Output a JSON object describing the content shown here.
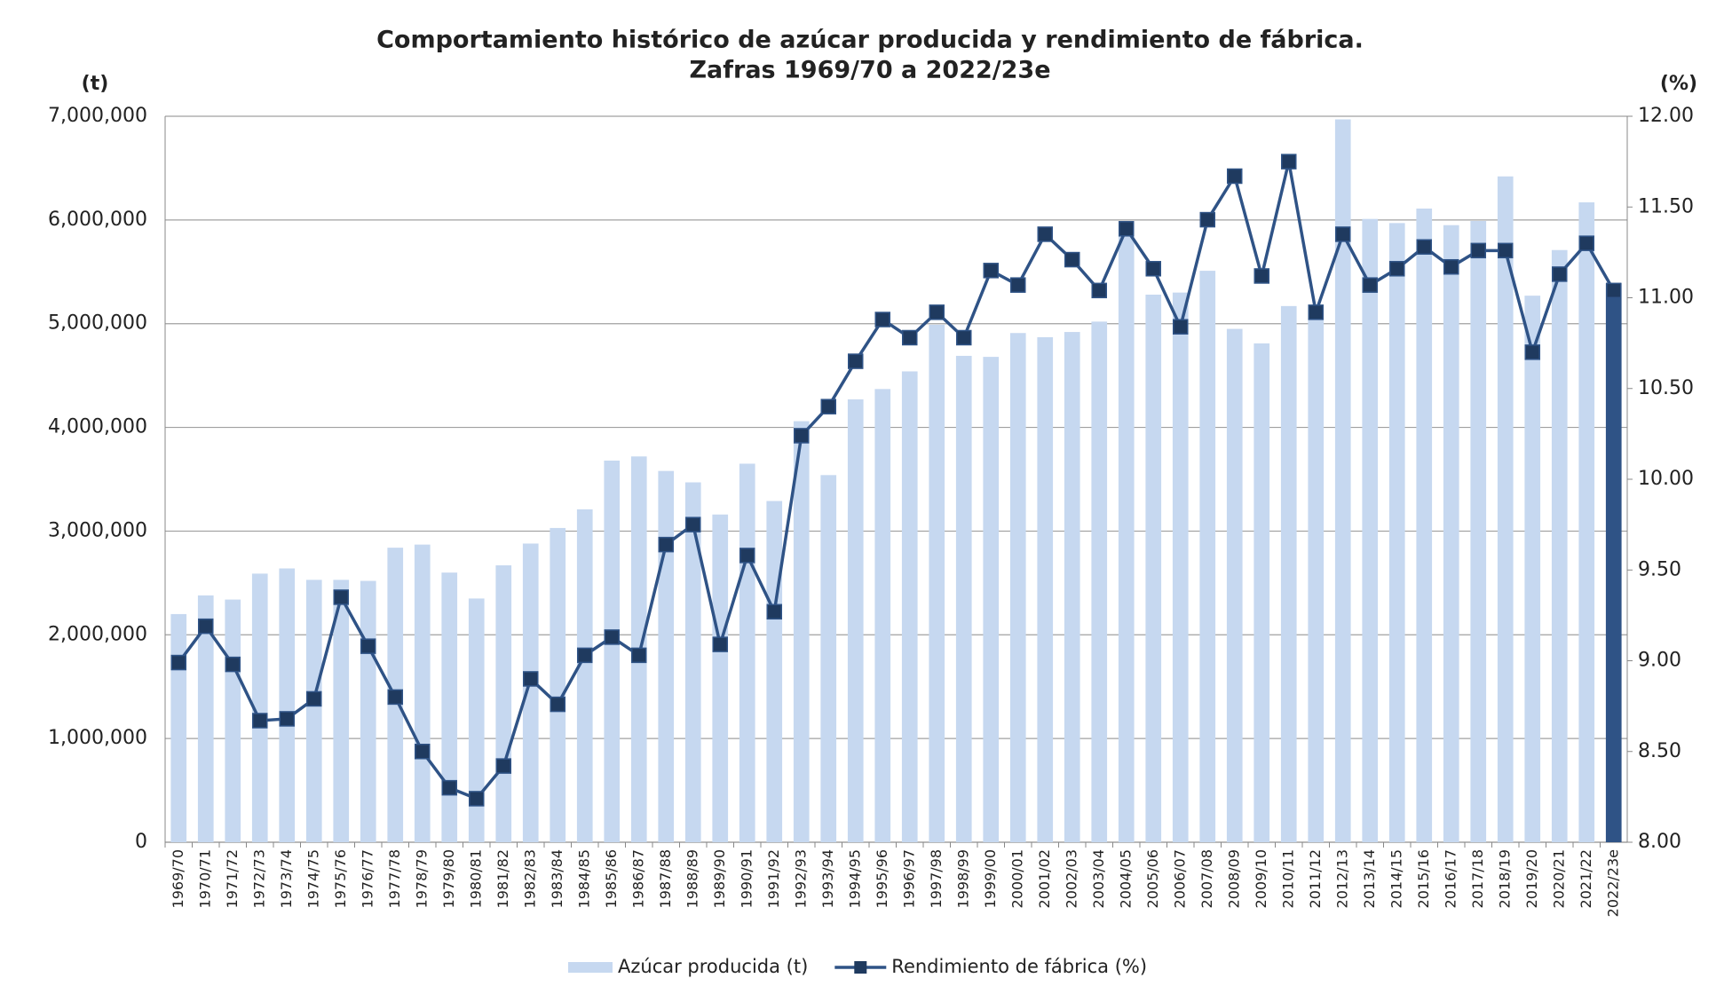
{
  "chart_data": {
    "type": "bar-line",
    "title": "Comportamiento histórico de azúcar producida y rendimiento de fábrica.",
    "subtitle": "Zafras 1969/70 a 2022/23e",
    "y_label": "(t)",
    "y2_label": "(%)",
    "categories": [
      "1969/70",
      "1970/71",
      "1971/72",
      "1972/73",
      "1973/74",
      "1974/75",
      "1975/76",
      "1976/77",
      "1977/78",
      "1978/79",
      "1979/80",
      "1980/81",
      "1981/82",
      "1982/83",
      "1983/84",
      "1984/85",
      "1985/86",
      "1986/87",
      "1987/88",
      "1988/89",
      "1989/90",
      "1990/91",
      "1991/92",
      "1992/93",
      "1993/94",
      "1994/95",
      "1995/96",
      "1996/97",
      "1997/98",
      "1998/99",
      "1999/00",
      "2000/01",
      "2001/02",
      "2002/03",
      "2003/04",
      "2004/05",
      "2005/06",
      "2006/07",
      "2007/08",
      "2008/09",
      "2009/10",
      "2010/11",
      "2011/12",
      "2012/13",
      "2013/14",
      "2014/15",
      "2015/16",
      "2016/17",
      "2017/18",
      "2018/19",
      "2019/20",
      "2020/21",
      "2021/22",
      "2022/23e"
    ],
    "series": [
      {
        "name": "Azúcar producida (t)",
        "type": "bar",
        "color": "#c6d8f0",
        "colors": [
          "#c6d8f0",
          "#c6d8f0",
          "#c6d8f0",
          "#c6d8f0",
          "#c6d8f0",
          "#c6d8f0",
          "#c6d8f0",
          "#c6d8f0",
          "#c6d8f0",
          "#c6d8f0",
          "#c6d8f0",
          "#c6d8f0",
          "#c6d8f0",
          "#c6d8f0",
          "#c6d8f0",
          "#c6d8f0",
          "#c6d8f0",
          "#c6d8f0",
          "#c6d8f0",
          "#c6d8f0",
          "#c6d8f0",
          "#c6d8f0",
          "#c6d8f0",
          "#c6d8f0",
          "#c6d8f0",
          "#c6d8f0",
          "#c6d8f0",
          "#c6d8f0",
          "#c6d8f0",
          "#c6d8f0",
          "#c6d8f0",
          "#c6d8f0",
          "#c6d8f0",
          "#c6d8f0",
          "#c6d8f0",
          "#c6d8f0",
          "#c6d8f0",
          "#c6d8f0",
          "#c6d8f0",
          "#c6d8f0",
          "#c6d8f0",
          "#c6d8f0",
          "#c6d8f0",
          "#c6d8f0",
          "#c6d8f0",
          "#c6d8f0",
          "#c6d8f0",
          "#c6d8f0",
          "#c6d8f0",
          "#c6d8f0",
          "#c6d8f0",
          "#c6d8f0",
          "#c6d8f0",
          "#2f5386"
        ],
        "values": [
          2200000,
          2380000,
          2340000,
          2590000,
          2640000,
          2530000,
          2530000,
          2520000,
          2840000,
          2870000,
          2600000,
          2350000,
          2670000,
          2880000,
          3030000,
          3210000,
          3680000,
          3720000,
          3580000,
          3470000,
          3160000,
          3650000,
          3290000,
          4060000,
          3540000,
          4270000,
          4370000,
          4540000,
          4990000,
          4690000,
          4680000,
          4910000,
          4870000,
          4920000,
          5020000,
          5850000,
          5280000,
          5300000,
          5510000,
          4950000,
          4810000,
          5170000,
          5050000,
          6970000,
          6010000,
          5970000,
          6110000,
          5950000,
          5990000,
          6420000,
          5270000,
          5710000,
          6170000,
          5390000
        ]
      },
      {
        "name": "Rendimiento de fábrica (%)",
        "type": "line",
        "axis": "y2",
        "color": "#2f5386",
        "values": [
          8.99,
          9.19,
          8.98,
          8.67,
          8.68,
          8.79,
          9.35,
          9.08,
          8.8,
          8.5,
          8.3,
          8.24,
          8.42,
          8.9,
          8.76,
          9.03,
          9.13,
          9.03,
          9.64,
          9.75,
          9.09,
          9.58,
          9.27,
          10.24,
          10.4,
          10.65,
          10.88,
          10.78,
          10.92,
          10.78,
          11.15,
          11.07,
          11.35,
          11.21,
          11.04,
          11.38,
          11.16,
          10.84,
          11.43,
          11.67,
          11.12,
          11.75,
          10.92,
          11.35,
          11.07,
          11.16,
          11.28,
          11.17,
          11.26,
          11.26,
          10.7,
          11.13,
          11.3,
          11.04
        ]
      }
    ],
    "ylim": [
      0,
      7000000
    ],
    "yticks": [
      0,
      {
        "value": 1000000,
        "label": "1,000,000"
      },
      {
        "value": 2000000,
        "label": "2,000,000"
      },
      {
        "value": 3000000,
        "label": "3,000,000"
      },
      {
        "value": 4000000,
        "label": "4,000,000"
      },
      {
        "value": 5000000,
        "label": "5,000,000"
      },
      {
        "value": 6000000,
        "label": "6,000,000"
      },
      {
        "value": 7000000,
        "label": "7,000,000"
      }
    ],
    "y2lim": [
      8,
      12
    ],
    "y2ticks": [
      {
        "value": 8,
        "label": "8.00"
      },
      {
        "value": 8.5,
        "label": "8.50"
      },
      {
        "value": 9,
        "label": "9.00"
      },
      {
        "value": 9.5,
        "label": "9.50"
      },
      {
        "value": 10,
        "label": "10.00"
      },
      {
        "value": 10.5,
        "label": "10.50"
      },
      {
        "value": 11,
        "label": "11.00"
      },
      {
        "value": 11.5,
        "label": "11.50"
      },
      {
        "value": 12,
        "label": "12.00"
      }
    ],
    "grid": true,
    "legend": "bottom"
  }
}
